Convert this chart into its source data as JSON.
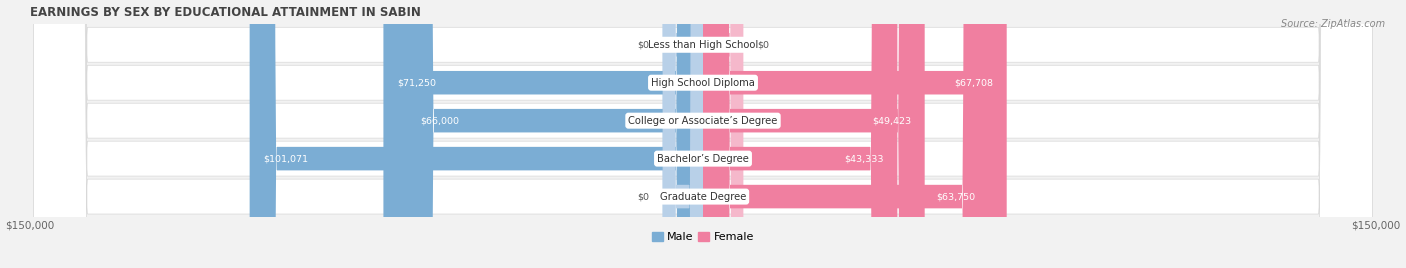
{
  "title": "EARNINGS BY SEX BY EDUCATIONAL ATTAINMENT IN SABIN",
  "source": "Source: ZipAtlas.com",
  "categories": [
    "Less than High School",
    "High School Diploma",
    "College or Associate’s Degree",
    "Bachelor’s Degree",
    "Graduate Degree"
  ],
  "male_values": [
    0,
    71250,
    66000,
    101071,
    0
  ],
  "female_values": [
    0,
    67708,
    49423,
    43333,
    63750
  ],
  "male_labels": [
    "$0",
    "$71,250",
    "$66,000",
    "$101,071",
    "$0"
  ],
  "female_labels": [
    "$0",
    "$67,708",
    "$49,423",
    "$43,333",
    "$63,750"
  ],
  "male_color": "#7badd4",
  "female_color": "#f07fa0",
  "male_color_light": "#b8d0e8",
  "female_color_light": "#f5b8cb",
  "axis_limit": 150000,
  "axis_label_left": "$150,000",
  "axis_label_right": "$150,000",
  "background_color": "#f2f2f2",
  "row_bg_color": "#ffffff",
  "title_fontsize": 8.5,
  "source_fontsize": 7,
  "bar_label_fontsize": 6.8,
  "category_fontsize": 7.2,
  "legend_fontsize": 8
}
